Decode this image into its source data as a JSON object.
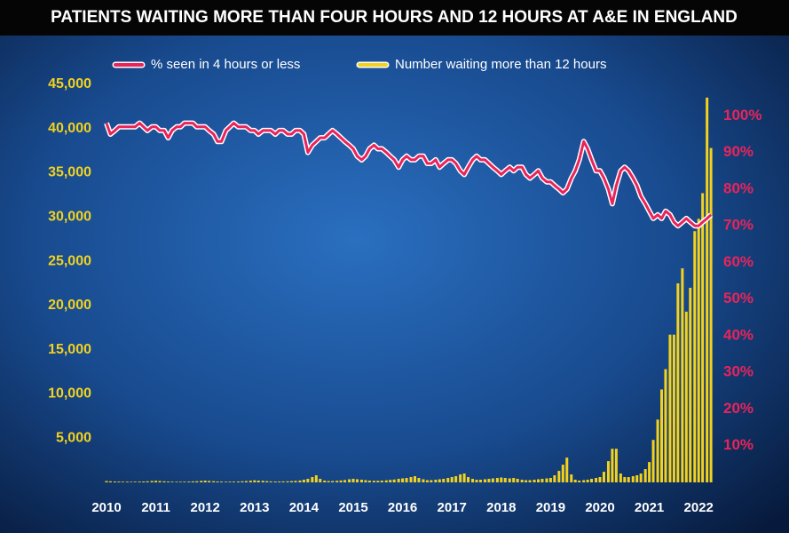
{
  "chart_data": {
    "type": "bar-line",
    "title": "PATIENTS WAITING MORE THAN FOUR HOURS AND 12 HOURS AT A&E IN ENGLAND",
    "x": [
      2010,
      2010.08,
      2010.17,
      2010.25,
      2010.33,
      2010.42,
      2010.5,
      2010.58,
      2010.67,
      2010.75,
      2010.83,
      2010.92,
      2011,
      2011.08,
      2011.17,
      2011.25,
      2011.33,
      2011.42,
      2011.5,
      2011.58,
      2011.67,
      2011.75,
      2011.83,
      2011.92,
      2012,
      2012.08,
      2012.17,
      2012.25,
      2012.33,
      2012.42,
      2012.5,
      2012.58,
      2012.67,
      2012.75,
      2012.83,
      2012.92,
      2013,
      2013.08,
      2013.17,
      2013.25,
      2013.33,
      2013.42,
      2013.5,
      2013.58,
      2013.67,
      2013.75,
      2013.83,
      2013.92,
      2014,
      2014.08,
      2014.17,
      2014.25,
      2014.33,
      2014.42,
      2014.5,
      2014.58,
      2014.67,
      2014.75,
      2014.83,
      2014.92,
      2015,
      2015.08,
      2015.17,
      2015.25,
      2015.33,
      2015.42,
      2015.5,
      2015.58,
      2015.67,
      2015.75,
      2015.83,
      2015.92,
      2016,
      2016.08,
      2016.17,
      2016.25,
      2016.33,
      2016.42,
      2016.5,
      2016.58,
      2016.67,
      2016.75,
      2016.83,
      2016.92,
      2017,
      2017.08,
      2017.17,
      2017.25,
      2017.33,
      2017.42,
      2017.5,
      2017.58,
      2017.67,
      2017.75,
      2017.83,
      2017.92,
      2018,
      2018.08,
      2018.17,
      2018.25,
      2018.33,
      2018.42,
      2018.5,
      2018.58,
      2018.67,
      2018.75,
      2018.83,
      2018.92,
      2019,
      2019.08,
      2019.17,
      2019.25,
      2019.33,
      2019.42,
      2019.5,
      2019.58,
      2019.67,
      2019.75,
      2019.83,
      2019.92,
      2020,
      2020.08,
      2020.17,
      2020.25,
      2020.33,
      2020.42,
      2020.5,
      2020.58,
      2020.67,
      2020.75,
      2020.83,
      2020.92,
      2021,
      2021.08,
      2021.17,
      2021.25,
      2021.33,
      2021.42,
      2021.5,
      2021.58,
      2021.67,
      2021.75,
      2021.83,
      2021.92,
      2022,
      2022.08,
      2022.17,
      2022.25
    ],
    "series": [
      {
        "name": "Number waiting more than 12 hours",
        "color": "#f2d21e",
        "kind": "bar",
        "axis": "y",
        "values": [
          150,
          120,
          100,
          90,
          80,
          80,
          70,
          80,
          90,
          100,
          120,
          160,
          180,
          150,
          120,
          90,
          80,
          70,
          70,
          80,
          90,
          110,
          130,
          170,
          200,
          160,
          130,
          100,
          90,
          80,
          80,
          90,
          100,
          120,
          150,
          190,
          230,
          200,
          180,
          140,
          110,
          100,
          100,
          110,
          120,
          140,
          170,
          210,
          300,
          400,
          600,
          800,
          400,
          200,
          150,
          150,
          180,
          220,
          260,
          350,
          400,
          350,
          300,
          250,
          200,
          180,
          180,
          200,
          230,
          280,
          320,
          400,
          450,
          500,
          600,
          700,
          500,
          350,
          250,
          250,
          300,
          350,
          400,
          500,
          600,
          700,
          900,
          1000,
          600,
          400,
          300,
          300,
          350,
          400,
          450,
          500,
          550,
          500,
          450,
          500,
          400,
          300,
          250,
          250,
          300,
          350,
          400,
          450,
          500,
          800,
          1300,
          2000,
          2800,
          900,
          300,
          200,
          250,
          300,
          400,
          500,
          600,
          1200,
          2400,
          3800,
          3800,
          1000,
          600,
          600,
          700,
          800,
          1000,
          1500,
          2300,
          4800,
          7100,
          10500,
          12800,
          16700,
          16700,
          22500,
          24200,
          19300,
          22000,
          28400,
          29800,
          32700,
          43500,
          37800
        ]
      },
      {
        "name": "% seen in 4 hours or less",
        "color": "#e8245a",
        "kind": "line",
        "axis": "y2",
        "values": [
          98,
          95,
          96,
          97,
          97,
          97,
          97,
          97,
          98,
          97,
          96,
          97,
          97,
          96,
          96,
          94,
          96,
          97,
          97,
          98,
          98,
          98,
          97,
          97,
          97,
          96,
          95,
          93,
          93,
          96,
          97,
          98,
          97,
          97,
          97,
          96,
          96,
          95,
          96,
          96,
          96,
          95,
          96,
          96,
          95,
          95,
          96,
          96,
          95,
          90,
          92,
          93,
          94,
          94,
          95,
          96,
          95,
          94,
          93,
          92,
          91,
          89,
          88,
          89,
          91,
          92,
          91,
          91,
          90,
          89,
          88,
          86,
          88,
          89,
          88,
          88,
          89,
          89,
          87,
          87,
          88,
          86,
          87,
          88,
          88,
          87,
          85,
          84,
          86,
          88,
          89,
          88,
          88,
          87,
          86,
          85,
          84,
          85,
          86,
          85,
          86,
          86,
          84,
          83,
          84,
          85,
          83,
          82,
          82,
          81,
          80,
          79,
          80,
          83,
          85,
          88,
          93,
          91,
          88,
          85,
          85,
          83,
          80,
          76,
          81,
          85,
          86,
          85,
          83,
          81,
          78,
          76,
          74,
          72,
          73,
          72,
          74,
          73,
          71,
          70,
          71,
          72,
          71,
          70,
          70,
          71,
          72,
          73
        ]
      }
    ],
    "xlim": [
      2010,
      2022.32
    ],
    "xticks": [
      2010,
      2011,
      2012,
      2013,
      2014,
      2015,
      2016,
      2017,
      2018,
      2019,
      2020,
      2021,
      2022
    ],
    "ylim": [
      0,
      46000
    ],
    "yticks": [
      {
        "value": 5000,
        "label": "5,000"
      },
      {
        "value": 10000,
        "label": "10,000"
      },
      {
        "value": 15000,
        "label": "15,000"
      },
      {
        "value": 20000,
        "label": "20,000"
      },
      {
        "value": 25000,
        "label": "25,000"
      },
      {
        "value": 30000,
        "label": "30,000"
      },
      {
        "value": 35000,
        "label": "35,000"
      },
      {
        "value": 40000,
        "label": "40,000"
      },
      {
        "value": 45000,
        "label": "45,000"
      }
    ],
    "y2lim": [
      0,
      111
    ],
    "y2ticks": [
      {
        "value": 10,
        "label": "10%"
      },
      {
        "value": 20,
        "label": "20%"
      },
      {
        "value": 30,
        "label": "30%"
      },
      {
        "value": 40,
        "label": "40%"
      },
      {
        "value": 50,
        "label": "50%"
      },
      {
        "value": 60,
        "label": "60%"
      },
      {
        "value": 70,
        "label": "70%"
      },
      {
        "value": 80,
        "label": "80%"
      },
      {
        "value": 90,
        "label": "90%"
      },
      {
        "value": 100,
        "label": "100%"
      }
    ],
    "legend": "top"
  }
}
